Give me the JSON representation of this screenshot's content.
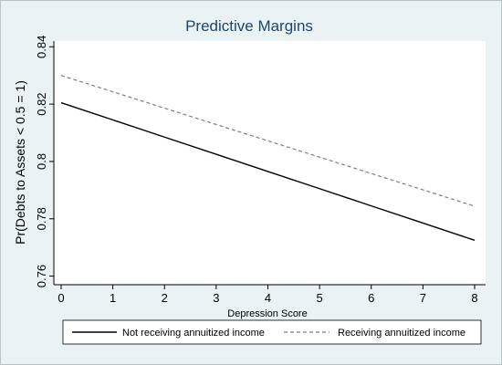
{
  "chart_data": {
    "type": "line",
    "title": "Predictive Margins",
    "xlabel": "Depression Score",
    "ylabel": "Pr(Debts to Assets < 0.5 = 1)",
    "x": [
      0,
      1,
      2,
      3,
      4,
      5,
      6,
      7,
      8
    ],
    "xticks": [
      "0",
      "1",
      "2",
      "3",
      "4",
      "5",
      "6",
      "7",
      "8"
    ],
    "yticks": [
      "0.76",
      "0.78",
      "0.8",
      "0.82",
      "0.84"
    ],
    "ytick_values": [
      0.76,
      0.78,
      0.8,
      0.82,
      0.84
    ],
    "xlim": [
      0,
      8
    ],
    "ylim": [
      0.757,
      0.842
    ],
    "grid": false,
    "legend_position": "bottom",
    "series": [
      {
        "name": "Not receiving annuitized income",
        "style": "solid",
        "color": "#000000",
        "values": [
          0.8205,
          0.8145,
          0.8085,
          0.8025,
          0.7965,
          0.7905,
          0.7845,
          0.7785,
          0.7725
        ]
      },
      {
        "name": "Receiving annuitized income",
        "style": "dashed",
        "color": "#7f7f7f",
        "values": [
          0.83,
          0.8243,
          0.8186,
          0.8129,
          0.8072,
          0.8015,
          0.7958,
          0.7901,
          0.7844
        ]
      }
    ]
  },
  "colors": {
    "background": "#eaf2f3",
    "plot_area": "#ffffff",
    "title": "#1a476f"
  }
}
